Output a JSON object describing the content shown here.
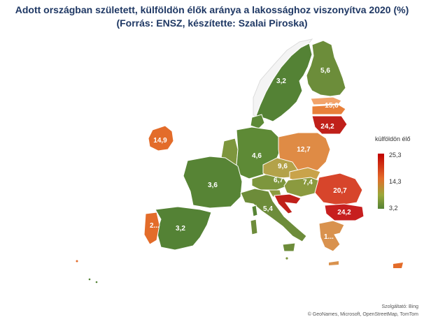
{
  "title": {
    "line1": "Adott országban született, külföldön élők aránya a lakossághoz viszonyítva 2020 (%)",
    "line2": "(Forrás: ENSZ, készítette: Szalai Piroska)"
  },
  "colors": {
    "title": "#1f3864",
    "high": "#c00000",
    "mid": "#e36c2a",
    "low": "#548235"
  },
  "legend": {
    "title": "külföldön élő",
    "max": "25,3",
    "mid": "14,3",
    "min": "3,2"
  },
  "attribution": {
    "line1": "Szolgáltató: Bing",
    "line2": "© GeoNames, Microsoft, OpenStreetMap, TomTom"
  },
  "regions": [
    {
      "name": "Sweden",
      "label": "3,2",
      "value": 3.2,
      "color": "#548235"
    },
    {
      "name": "Finland",
      "label": "5,6",
      "value": 5.6,
      "color": "#6c8d3a"
    },
    {
      "name": "Latvia",
      "label": "15,6",
      "value": 15.6,
      "color": "#e8803a"
    },
    {
      "name": "Lithuania",
      "label": "24,2",
      "value": 24.2,
      "color": "#c0201a"
    },
    {
      "name": "Ireland",
      "label": "14,9",
      "value": 14.9,
      "color": "#e36c2a"
    },
    {
      "name": "Germany",
      "label": "4,6",
      "value": 4.6,
      "color": "#5e8a36"
    },
    {
      "name": "Poland",
      "label": "12,7",
      "value": 12.7,
      "color": "#df8b45"
    },
    {
      "name": "Czechia",
      "label": "9,6",
      "value": 9.6,
      "color": "#b3a249"
    },
    {
      "name": "France",
      "label": "3,6",
      "value": 3.6,
      "color": "#578435"
    },
    {
      "name": "Austria",
      "label": "6,7",
      "value": 6.7,
      "color": "#7d963d"
    },
    {
      "name": "Hungary",
      "label": "7,4",
      "value": 7.4,
      "color": "#8b9a3f"
    },
    {
      "name": "Romania",
      "label": "20,7",
      "value": 20.7,
      "color": "#d7452b"
    },
    {
      "name": "Bulgaria",
      "label": "24,2",
      "value": 24.2,
      "color": "#c71f1f"
    },
    {
      "name": "Italy",
      "label": "5,4",
      "value": 5.4,
      "color": "#6d8c3a"
    },
    {
      "name": "Spain",
      "label": "3,2",
      "value": 3.2,
      "color": "#548235"
    },
    {
      "name": "Portugal",
      "label": "2...",
      "value": null,
      "color": "#e36c2a"
    },
    {
      "name": "Greece",
      "label": "1...",
      "value": null,
      "color": "#d9924e"
    }
  ]
}
